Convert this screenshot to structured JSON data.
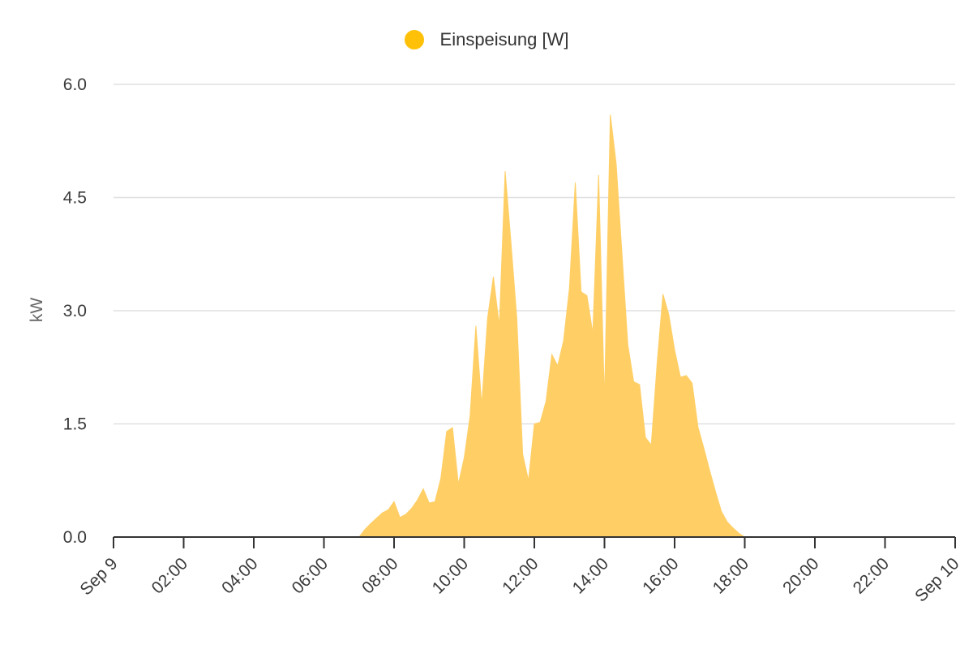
{
  "legend": {
    "label": "Einspeisung [W]"
  },
  "colors": {
    "series": "#ffc107",
    "area_fill": "#ffcf66",
    "grid": "#e0e0e0",
    "axis": "#333333"
  },
  "chart_data": {
    "type": "area",
    "title": "",
    "xlabel": "",
    "ylabel": "kW",
    "legend_position": "top-center",
    "grid": true,
    "x_range": [
      "2024-09-09 00:00",
      "2024-09-10 00:00"
    ],
    "ylim": [
      0,
      6
    ],
    "y_ticks": [
      "0.0",
      "1.5",
      "3.0",
      "4.5",
      "6.0"
    ],
    "x_ticks": [
      "Sep 9",
      "02:00",
      "04:00",
      "06:00",
      "08:00",
      "10:00",
      "12:00",
      "14:00",
      "16:00",
      "18:00",
      "20:00",
      "22:00",
      "Sep 10"
    ],
    "series": [
      {
        "name": "Einspeisung [W]",
        "points": [
          [
            "07:00",
            0.0
          ],
          [
            "07:10",
            0.1
          ],
          [
            "07:20",
            0.18
          ],
          [
            "07:30",
            0.25
          ],
          [
            "07:40",
            0.32
          ],
          [
            "07:50",
            0.36
          ],
          [
            "08:00",
            0.47
          ],
          [
            "08:10",
            0.26
          ],
          [
            "08:20",
            0.3
          ],
          [
            "08:30",
            0.38
          ],
          [
            "08:40",
            0.49
          ],
          [
            "08:50",
            0.64
          ],
          [
            "09:00",
            0.45
          ],
          [
            "09:10",
            0.47
          ],
          [
            "09:20",
            0.78
          ],
          [
            "09:30",
            1.4
          ],
          [
            "09:40",
            1.45
          ],
          [
            "09:50",
            0.7
          ],
          [
            "10:00",
            1.05
          ],
          [
            "10:10",
            1.6
          ],
          [
            "10:20",
            2.8
          ],
          [
            "10:30",
            1.75
          ],
          [
            "10:40",
            2.9
          ],
          [
            "10:50",
            3.45
          ],
          [
            "11:00",
            2.8
          ],
          [
            "11:10",
            4.85
          ],
          [
            "11:20",
            3.9
          ],
          [
            "11:30",
            2.9
          ],
          [
            "11:40",
            1.1
          ],
          [
            "11:50",
            0.75
          ],
          [
            "12:00",
            1.5
          ],
          [
            "12:10",
            1.52
          ],
          [
            "12:20",
            1.8
          ],
          [
            "12:30",
            2.42
          ],
          [
            "12:40",
            2.27
          ],
          [
            "12:50",
            2.6
          ],
          [
            "13:00",
            3.3
          ],
          [
            "13:10",
            4.7
          ],
          [
            "13:20",
            3.25
          ],
          [
            "13:30",
            3.2
          ],
          [
            "13:40",
            2.7
          ],
          [
            "13:50",
            4.8
          ],
          [
            "14:00",
            1.8
          ],
          [
            "14:10",
            5.6
          ],
          [
            "14:20",
            4.95
          ],
          [
            "14:30",
            3.75
          ],
          [
            "14:40",
            2.55
          ],
          [
            "14:50",
            2.06
          ],
          [
            "15:00",
            2.02
          ],
          [
            "15:10",
            1.32
          ],
          [
            "15:20",
            1.22
          ],
          [
            "15:30",
            2.3
          ],
          [
            "15:40",
            3.22
          ],
          [
            "15:50",
            2.95
          ],
          [
            "16:00",
            2.48
          ],
          [
            "16:10",
            2.12
          ],
          [
            "16:20",
            2.14
          ],
          [
            "16:30",
            2.04
          ],
          [
            "16:40",
            1.46
          ],
          [
            "16:50",
            1.18
          ],
          [
            "17:00",
            0.88
          ],
          [
            "17:10",
            0.6
          ],
          [
            "17:20",
            0.34
          ],
          [
            "17:30",
            0.2
          ],
          [
            "17:40",
            0.12
          ],
          [
            "17:50",
            0.05
          ],
          [
            "18:00",
            0.0
          ]
        ]
      }
    ]
  }
}
